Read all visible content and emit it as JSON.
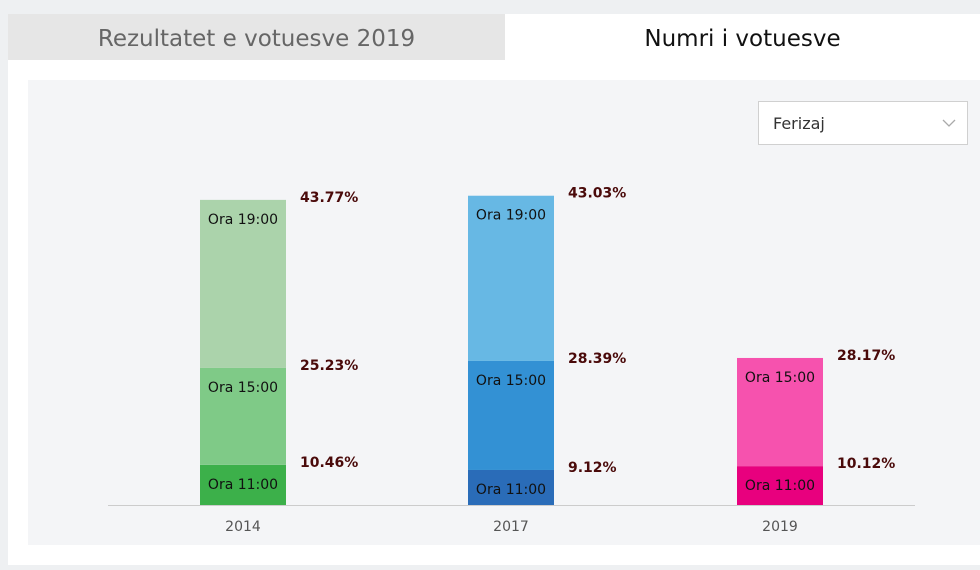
{
  "tabs": [
    "Rezultatet e votuesve 2019",
    "Numri i votuesve"
  ],
  "dropdown": {
    "selected": "Ferizaj"
  },
  "chart_data": {
    "type": "stacked-bar",
    "categories": [
      "2014",
      "2017",
      "2019"
    ],
    "series": [
      {
        "name": "Ora 11:00",
        "colors": [
          "#3cb04a",
          "#2a6cb8",
          "#e8007e"
        ],
        "values": [
          10.46,
          9.12,
          10.12
        ],
        "value_labels": [
          "10.46%",
          "9.12%",
          "10.12%"
        ]
      },
      {
        "name": "Ora 15:00",
        "colors": [
          "#7fca87",
          "#3391d4",
          "#f652ae"
        ],
        "values": [
          25.23,
          28.39,
          28.17
        ],
        "value_labels": [
          "25.23%",
          "28.39%",
          "28.17%"
        ]
      },
      {
        "name": "Ora 19:00",
        "colors": [
          "#abd3ab",
          "#67b8e4",
          null
        ],
        "values": [
          43.77,
          43.03,
          null
        ],
        "value_labels": [
          "43.77%",
          "43.03%",
          null
        ]
      }
    ]
  }
}
